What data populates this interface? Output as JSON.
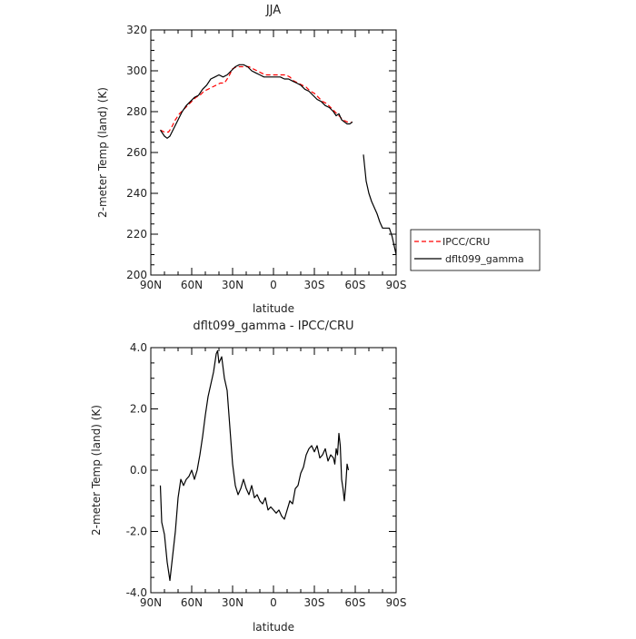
{
  "chart_data": [
    {
      "type": "line",
      "title": "JJA",
      "xlabel": "latitude",
      "ylabel": "2-meter Temp (land) (K)",
      "xlim": [
        90,
        -90
      ],
      "ylim": [
        200,
        320
      ],
      "xticks": [
        90,
        60,
        30,
        0,
        -30,
        -60,
        -90
      ],
      "xtick_labels": [
        "90N",
        "60N",
        "30N",
        "0",
        "30S",
        "60S",
        "90S"
      ],
      "yticks": [
        200,
        220,
        240,
        260,
        280,
        300,
        320
      ],
      "ytick_labels": [
        "200",
        "220",
        "240",
        "260",
        "280",
        "300",
        "320"
      ],
      "legend": {
        "placement": "outside-right",
        "entries": [
          "IPCC/CRU",
          "dflt099_gamma"
        ]
      },
      "series": [
        {
          "name": "IPCC/CRU",
          "color": "#ff0000",
          "dash": "dashed",
          "points": [
            [
              83,
              271
            ],
            [
              80,
              270
            ],
            [
              77,
              270
            ],
            [
              75,
              272
            ],
            [
              72,
              276
            ],
            [
              69,
              279
            ],
            [
              66,
              281
            ],
            [
              63,
              283
            ],
            [
              60,
              285
            ],
            [
              57,
              287
            ],
            [
              54,
              288
            ],
            [
              51,
              290
            ],
            [
              48,
              291
            ],
            [
              45,
              292
            ],
            [
              42,
              293
            ],
            [
              39,
              294
            ],
            [
              36,
              294
            ],
            [
              33,
              297
            ],
            [
              30,
              301
            ],
            [
              27,
              302
            ],
            [
              24,
              302
            ],
            [
              21,
              302
            ],
            [
              18,
              302
            ],
            [
              15,
              301
            ],
            [
              12,
              300
            ],
            [
              9,
              299
            ],
            [
              6,
              298
            ],
            [
              3,
              298
            ],
            [
              0,
              298
            ],
            [
              -3,
              298
            ],
            [
              -6,
              298
            ],
            [
              -9,
              298
            ],
            [
              -12,
              297
            ],
            [
              -15,
              295
            ],
            [
              -18,
              294
            ],
            [
              -21,
              293
            ],
            [
              -24,
              292
            ],
            [
              -27,
              290
            ],
            [
              -30,
              289
            ],
            [
              -33,
              287
            ],
            [
              -36,
              285
            ],
            [
              -39,
              284
            ],
            [
              -42,
              282
            ],
            [
              -45,
              280
            ],
            [
              -48,
              278
            ],
            [
              -51,
              276
            ],
            [
              -54,
              275
            ],
            [
              -57,
              275
            ]
          ]
        },
        {
          "name": "dflt099_gamma",
          "color": "#000000",
          "dash": "solid",
          "points": [
            [
              83,
              271
            ],
            [
              80,
              268
            ],
            [
              78,
              267
            ],
            [
              76,
              268
            ],
            [
              73,
              272
            ],
            [
              70,
              276
            ],
            [
              67,
              280
            ],
            [
              64,
              283
            ],
            [
              61,
              285
            ],
            [
              58,
              287
            ],
            [
              55,
              288
            ],
            [
              52,
              291
            ],
            [
              49,
              293
            ],
            [
              46,
              296
            ],
            [
              43,
              297
            ],
            [
              40,
              298
            ],
            [
              37,
              297
            ],
            [
              34,
              298
            ],
            [
              31,
              300
            ],
            [
              28,
              302
            ],
            [
              25,
              303
            ],
            [
              22,
              303
            ],
            [
              19,
              302
            ],
            [
              16,
              300
            ],
            [
              13,
              299
            ],
            [
              10,
              298
            ],
            [
              7,
              297
            ],
            [
              4,
              297
            ],
            [
              1,
              297
            ],
            [
              -2,
              297
            ],
            [
              -5,
              297
            ],
            [
              -8,
              296
            ],
            [
              -11,
              296
            ],
            [
              -14,
              295
            ],
            [
              -17,
              294
            ],
            [
              -20,
              293
            ],
            [
              -23,
              291
            ],
            [
              -26,
              290
            ],
            [
              -29,
              288
            ],
            [
              -32,
              286
            ],
            [
              -35,
              285
            ],
            [
              -38,
              283
            ],
            [
              -41,
              282
            ],
            [
              -44,
              280
            ],
            [
              -46,
              278
            ],
            [
              -48,
              279
            ],
            [
              -50,
              276
            ],
            [
              -52,
              275
            ],
            [
              -54,
              274
            ],
            [
              -56,
              274
            ],
            [
              -58,
              275
            ]
          ],
          "segment2": [
            [
              -66,
              259
            ],
            [
              -68,
              246
            ],
            [
              -70,
              240
            ],
            [
              -72,
              236
            ],
            [
              -74,
              233
            ],
            [
              -76,
              230
            ],
            [
              -78,
              226
            ],
            [
              -80,
              223
            ],
            [
              -83,
              223
            ],
            [
              -85,
              223
            ],
            [
              -87,
              219
            ],
            [
              -89,
              213
            ],
            [
              -90,
              210
            ]
          ]
        }
      ]
    },
    {
      "type": "line",
      "title": "dflt099_gamma - IPCC/CRU",
      "xlabel": "latitude",
      "ylabel": "2-meter Temp (land) (K)",
      "xlim": [
        90,
        -90
      ],
      "ylim": [
        -4,
        4
      ],
      "xticks": [
        90,
        60,
        30,
        0,
        -30,
        -60,
        -90
      ],
      "xtick_labels": [
        "90N",
        "60N",
        "30N",
        "0",
        "30S",
        "60S",
        "90S"
      ],
      "yticks": [
        -4,
        -2,
        0,
        2,
        4
      ],
      "ytick_labels": [
        "-4.0",
        "-2.0",
        "0.0",
        "2.0",
        "4.0"
      ],
      "series": [
        {
          "name": "dflt099_gamma - IPCC/CRU",
          "color": "#000000",
          "dash": "solid",
          "points": [
            [
              83,
              -0.5
            ],
            [
              82,
              -1.7
            ],
            [
              80,
              -2.1
            ],
            [
              78,
              -3.0
            ],
            [
              76,
              -3.6
            ],
            [
              74,
              -2.8
            ],
            [
              72,
              -2.0
            ],
            [
              70,
              -0.9
            ],
            [
              68,
              -0.3
            ],
            [
              66,
              -0.5
            ],
            [
              64,
              -0.3
            ],
            [
              62,
              -0.2
            ],
            [
              60,
              0.0
            ],
            [
              58,
              -0.3
            ],
            [
              56,
              0.0
            ],
            [
              54,
              0.5
            ],
            [
              52,
              1.1
            ],
            [
              50,
              1.8
            ],
            [
              48,
              2.4
            ],
            [
              46,
              2.8
            ],
            [
              44,
              3.2
            ],
            [
              42,
              3.8
            ],
            [
              41,
              3.9
            ],
            [
              40,
              3.5
            ],
            [
              38,
              3.7
            ],
            [
              36,
              3.0
            ],
            [
              34,
              2.6
            ],
            [
              32,
              1.4
            ],
            [
              30,
              0.2
            ],
            [
              28,
              -0.5
            ],
            [
              26,
              -0.8
            ],
            [
              24,
              -0.6
            ],
            [
              22,
              -0.3
            ],
            [
              20,
              -0.6
            ],
            [
              18,
              -0.8
            ],
            [
              16,
              -0.5
            ],
            [
              14,
              -0.9
            ],
            [
              12,
              -0.8
            ],
            [
              10,
              -1.0
            ],
            [
              8,
              -1.1
            ],
            [
              6,
              -0.9
            ],
            [
              4,
              -1.3
            ],
            [
              2,
              -1.2
            ],
            [
              0,
              -1.3
            ],
            [
              -2,
              -1.4
            ],
            [
              -4,
              -1.3
            ],
            [
              -6,
              -1.5
            ],
            [
              -8,
              -1.6
            ],
            [
              -10,
              -1.3
            ],
            [
              -12,
              -1.0
            ],
            [
              -14,
              -1.1
            ],
            [
              -16,
              -0.6
            ],
            [
              -18,
              -0.5
            ],
            [
              -20,
              -0.1
            ],
            [
              -22,
              0.1
            ],
            [
              -24,
              0.5
            ],
            [
              -26,
              0.7
            ],
            [
              -28,
              0.8
            ],
            [
              -30,
              0.6
            ],
            [
              -32,
              0.8
            ],
            [
              -34,
              0.4
            ],
            [
              -36,
              0.5
            ],
            [
              -38,
              0.7
            ],
            [
              -40,
              0.3
            ],
            [
              -42,
              0.5
            ],
            [
              -44,
              0.4
            ],
            [
              -45,
              0.2
            ],
            [
              -46,
              0.7
            ],
            [
              -47,
              0.5
            ],
            [
              -48,
              1.2
            ],
            [
              -49,
              0.8
            ],
            [
              -50,
              -0.3
            ],
            [
              -51,
              -0.6
            ],
            [
              -52,
              -1.0
            ],
            [
              -53,
              -0.5
            ],
            [
              -54,
              0.2
            ],
            [
              -55,
              0.0
            ]
          ]
        }
      ]
    }
  ]
}
